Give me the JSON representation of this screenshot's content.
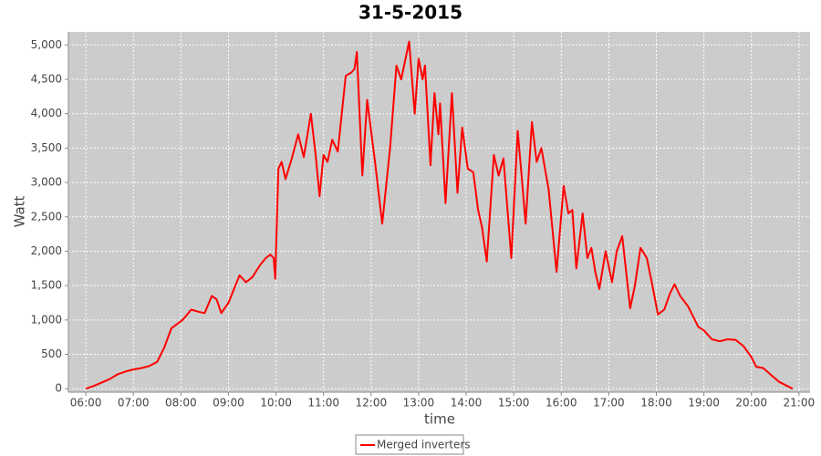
{
  "chart_data": {
    "type": "line",
    "title": "31-5-2015",
    "x_label": "time",
    "y_label": "Watt",
    "x": [
      "06:00",
      "06:10",
      "06:20",
      "06:30",
      "06:40",
      "06:50",
      "07:00",
      "07:10",
      "07:20",
      "07:30",
      "07:39",
      "07:48",
      "08:02",
      "08:08",
      "08:13",
      "08:22",
      "08:30",
      "08:39",
      "08:45",
      "08:51",
      "09:00",
      "09:07",
      "09:14",
      "09:22",
      "09:30",
      "09:40",
      "09:47",
      "09:53",
      "09:57",
      "09:59",
      "10:03",
      "10:07",
      "10:12",
      "10:20",
      "10:28",
      "10:35",
      "10:44",
      "10:50",
      "10:55",
      "11:00",
      "11:05",
      "11:11",
      "11:18",
      "11:28",
      "11:35",
      "11:39",
      "11:42",
      "11:49",
      "11:55",
      "12:05",
      "12:14",
      "12:24",
      "12:32",
      "12:38",
      "12:48",
      "12:55",
      "13:00",
      "13:05",
      "13:08",
      "13:15",
      "13:20",
      "13:25",
      "13:27",
      "13:34",
      "13:42",
      "13:49",
      "13:55",
      "14:02",
      "14:09",
      "14:15",
      "14:20",
      "14:26",
      "14:35",
      "14:41",
      "14:47",
      "14:57",
      "15:05",
      "15:10",
      "15:15",
      "15:23",
      "15:29",
      "15:35",
      "15:44",
      "15:54",
      "16:03",
      "16:09",
      "16:14",
      "16:19",
      "16:27",
      "16:33",
      "16:38",
      "16:43",
      "16:48",
      "16:56",
      "17:04",
      "17:10",
      "17:17",
      "17:27",
      "17:33",
      "17:40",
      "17:48",
      "17:55",
      "18:02",
      "18:10",
      "18:17",
      "18:23",
      "18:30",
      "18:40",
      "18:53",
      "19:00",
      "19:10",
      "19:20",
      "19:30",
      "19:40",
      "19:50",
      "20:00",
      "20:06",
      "20:15",
      "20:25",
      "20:35",
      "20:45",
      "20:52"
    ],
    "series": [
      {
        "name": "Merged inverters",
        "color": "#ff0000",
        "values": [
          0,
          40,
          90,
          140,
          210,
          250,
          280,
          300,
          330,
          390,
          600,
          880,
          1000,
          1080,
          1150,
          1120,
          1100,
          1350,
          1300,
          1100,
          1250,
          1450,
          1650,
          1550,
          1620,
          1800,
          1900,
          1950,
          1900,
          1600,
          3200,
          3300,
          3050,
          3350,
          3700,
          3370,
          4000,
          3400,
          2800,
          3400,
          3300,
          3620,
          3450,
          4550,
          4600,
          4650,
          4900,
          3100,
          4200,
          3300,
          2400,
          3500,
          4700,
          4500,
          5050,
          4000,
          4800,
          4500,
          4700,
          3250,
          4300,
          3700,
          4150,
          2700,
          4300,
          2850,
          3800,
          3200,
          3150,
          2600,
          2350,
          1850,
          3400,
          3100,
          3350,
          1900,
          3750,
          3100,
          2400,
          3880,
          3300,
          3500,
          2900,
          1700,
          2950,
          2550,
          2600,
          1750,
          2550,
          1900,
          2050,
          1700,
          1450,
          2000,
          1550,
          2000,
          2220,
          1170,
          1500,
          2050,
          1900,
          1500,
          1080,
          1150,
          1380,
          1520,
          1350,
          1200,
          900,
          850,
          720,
          690,
          720,
          710,
          620,
          460,
          320,
          300,
          200,
          100,
          40,
          0
        ]
      }
    ],
    "xlim": [
      "05:38",
      "21:14"
    ],
    "ylim": [
      -50,
      5190
    ],
    "xticks": [
      "06:00",
      "07:00",
      "08:00",
      "09:00",
      "10:00",
      "11:00",
      "12:00",
      "13:00",
      "14:00",
      "15:00",
      "16:00",
      "17:00",
      "18:00",
      "19:00",
      "20:00",
      "21:00"
    ],
    "yticks": [
      0,
      500,
      {
        "value": 1000,
        "label": "1,000"
      },
      {
        "value": 1500,
        "label": "1,500"
      },
      {
        "value": 2000,
        "label": "2,000"
      },
      {
        "value": 2500,
        "label": "2,500"
      },
      {
        "value": 3000,
        "label": "3,000"
      },
      {
        "value": 3500,
        "label": "3,500"
      },
      {
        "value": 4000,
        "label": "4,000"
      },
      {
        "value": 4500,
        "label": "4,500"
      },
      {
        "value": 5000,
        "label": "5,000"
      }
    ],
    "grid": true,
    "legend": "bottom"
  }
}
